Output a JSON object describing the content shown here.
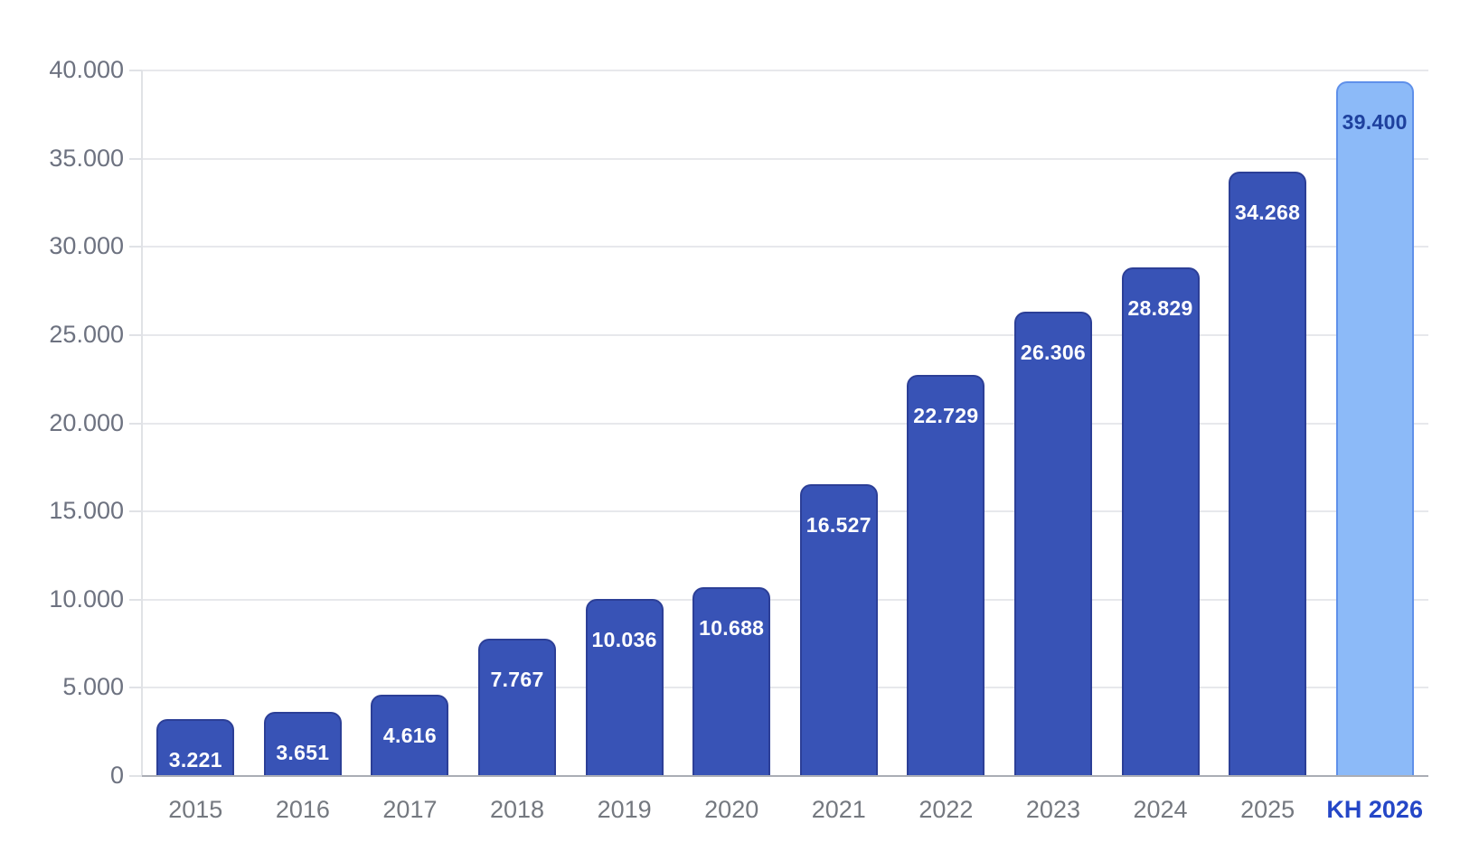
{
  "chart_data": {
    "type": "bar",
    "title": "",
    "xlabel": "",
    "ylabel": "",
    "categories": [
      "2015",
      "2016",
      "2017",
      "2018",
      "2019",
      "2020",
      "2021",
      "2022",
      "2023",
      "2024",
      "2025",
      "KH 2026"
    ],
    "values": [
      3221,
      3651,
      4616,
      7767,
      10036,
      10688,
      16527,
      22729,
      26306,
      28829,
      34268,
      39400
    ],
    "bar_labels": [
      "3.221",
      "3.651",
      "4.616",
      "7.767",
      "10.036",
      "10.688",
      "16.527",
      "22.729",
      "26.306",
      "28.829",
      "34.268",
      "39.400"
    ],
    "highlight_index": 11,
    "ylim": [
      0,
      40000
    ],
    "ytick_values": [
      0,
      5000,
      10000,
      15000,
      20000,
      25000,
      30000,
      35000,
      40000
    ],
    "ytick_labels": [
      "0",
      "5.000",
      "10.000",
      "15.000",
      "20.000",
      "25.000",
      "30.000",
      "35.000",
      "40.000"
    ],
    "grid": "horizontal",
    "legend": "none",
    "colors": {
      "bar_fill": "#3853b6",
      "bar_border": "#2c3f97",
      "bar_label": "#ffffff",
      "highlight_fill": "#8cbaf8",
      "highlight_border": "#5f90ea",
      "highlight_label": "#1e419e",
      "y_axis_label": "#6d7280",
      "x_axis_label": "#74787f",
      "highlight_x_label": "#2547c7",
      "gridline": "#e7e8ec",
      "axis_line": "#e0e2e6",
      "baseline": "#aaadb5"
    }
  }
}
